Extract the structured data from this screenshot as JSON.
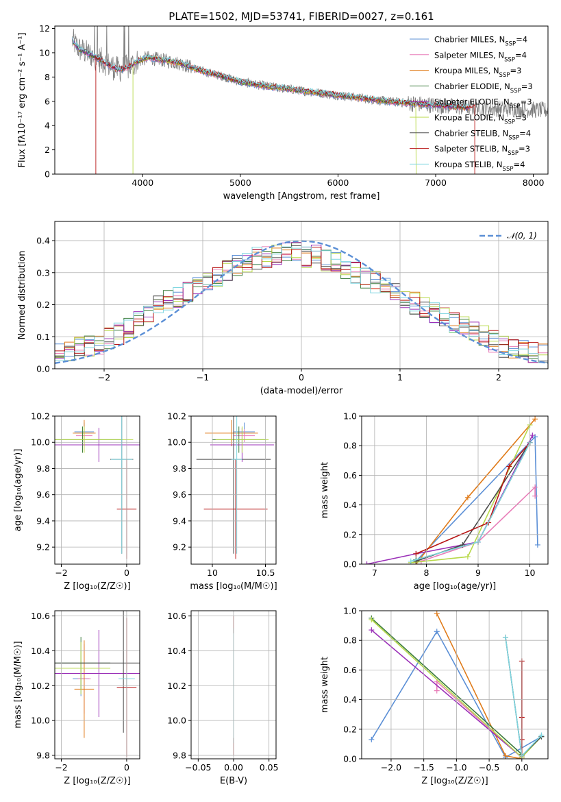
{
  "figure": {
    "title": "PLATE=1502, MJD=53741, FIBERID=0027, z=0.161"
  },
  "models": [
    {
      "name": "Chabrier MILES",
      "nssp": "4",
      "color": "#5b8fd6"
    },
    {
      "name": "Salpeter MILES",
      "nssp": "4",
      "color": "#e87db8"
    },
    {
      "name": "Kroupa MILES",
      "nssp": "3",
      "color": "#e07b1a"
    },
    {
      "name": "Chabrier ELODIE",
      "nssp": "3",
      "color": "#3d7d3d"
    },
    {
      "name": "Salpeter ELODIE",
      "nssp": "3",
      "color": "#9b30b8"
    },
    {
      "name": "Kroupa ELODIE",
      "nssp": "3",
      "color": "#b8d94a"
    },
    {
      "name": "Chabrier STELIB",
      "nssp": "4",
      "color": "#4a4a4a"
    },
    {
      "name": "Salpeter STELIB",
      "nssp": "3",
      "color": "#b81414"
    },
    {
      "name": "Kroupa STELIB",
      "nssp": "4",
      "color": "#7fd6e0"
    }
  ],
  "chart_data": [
    {
      "id": "spectrum",
      "type": "line",
      "xlabel": "wavelength [Angstrom, rest frame]",
      "ylabel": "Flux [fλ10⁻¹⁷ erg cm⁻² s⁻¹ A⁻¹]",
      "xlim": [
        3100,
        8150
      ],
      "ylim": [
        0,
        12.2
      ],
      "xticks": [
        4000,
        5000,
        6000,
        7000,
        8000
      ],
      "yticks": [
        0,
        2,
        4,
        6,
        8,
        10,
        12
      ],
      "continuum": {
        "x": [
          3280,
          3350,
          3450,
          3550,
          3650,
          3750,
          3850,
          3950,
          4050,
          4200,
          4400,
          4600,
          4800,
          5000,
          5300,
          5600,
          5900,
          6200,
          6500,
          6800,
          7100,
          7300
        ],
        "y": [
          11.0,
          10.3,
          9.9,
          9.5,
          9.0,
          8.6,
          8.8,
          9.3,
          9.6,
          9.4,
          9.1,
          8.5,
          8.1,
          7.6,
          7.2,
          6.9,
          6.6,
          6.3,
          6.0,
          5.8,
          5.6,
          5.5
        ]
      },
      "data_series": {
        "name": "data",
        "x_range": [
          3280,
          8150
        ],
        "color": "#808080"
      },
      "model_cutoffs": [
        {
          "model": "Salpeter STELIB",
          "x_start": 3520,
          "x_end": 7400
        },
        {
          "model": "Kroupa ELODIE",
          "x_start": 3900,
          "x_end": 6800
        }
      ]
    },
    {
      "id": "residuals",
      "type": "step",
      "xlabel": "(data-model)/error",
      "ylabel": "Normed distribution",
      "xlim": [
        -2.5,
        2.5
      ],
      "ylim": [
        0,
        0.46
      ],
      "xticks": [
        -2,
        -1,
        0,
        1,
        2
      ],
      "yticks": [
        0.0,
        0.1,
        0.2,
        0.3,
        0.4
      ],
      "legend": "𝒩(0, 1)",
      "legend_position": "top-right",
      "normal_curve": {
        "mean": 0,
        "sigma": 1,
        "color": "#5b8fd6"
      },
      "bin_edges_start": -2.5,
      "bin_width": 0.1,
      "envelope": [
        0.055,
        0.05,
        0.065,
        0.07,
        0.08,
        0.095,
        0.11,
        0.13,
        0.15,
        0.17,
        0.195,
        0.21,
        0.225,
        0.24,
        0.255,
        0.27,
        0.29,
        0.305,
        0.32,
        0.335,
        0.345,
        0.35,
        0.36,
        0.37,
        0.365,
        0.35,
        0.355,
        0.34,
        0.33,
        0.315,
        0.3,
        0.285,
        0.27,
        0.255,
        0.24,
        0.225,
        0.205,
        0.19,
        0.175,
        0.16,
        0.145,
        0.13,
        0.115,
        0.1,
        0.085,
        0.07,
        0.06,
        0.055,
        0.05,
        0.045
      ]
    },
    {
      "id": "age_vs_Z",
      "type": "errorbar",
      "xlabel": "Z [log₁₀(Z/Z☉)]",
      "ylabel": "age  [log₁₀(age/yr)]",
      "xlim": [
        -2.2,
        0.4
      ],
      "ylim": [
        9.07,
        10.2
      ],
      "xticks": [
        -2,
        0
      ],
      "yticks": [
        9.2,
        9.4,
        9.6,
        9.8,
        10.0,
        10.2
      ],
      "points": [
        {
          "model": "Chabrier MILES",
          "x": -1.3,
          "xerr": 0.3,
          "y": 10.08,
          "yerr": 0.07
        },
        {
          "model": "Salpeter MILES",
          "x": -1.3,
          "xerr": 0.25,
          "y": 10.05,
          "yerr": 0.05
        },
        {
          "model": "Kroupa MILES",
          "x": -1.3,
          "xerr": 0.35,
          "y": 10.07,
          "yerr": 0.1
        },
        {
          "model": "Chabrier ELODIE",
          "x": -1.35,
          "xerr": 1.2,
          "y": 10.02,
          "yerr": 0.1
        },
        {
          "model": "Salpeter ELODIE",
          "x": -0.85,
          "xerr": 2.0,
          "y": 9.98,
          "yerr": 0.13
        },
        {
          "model": "Kroupa ELODIE",
          "x": -1.3,
          "xerr": 1.5,
          "y": 10.02,
          "yerr": 0.1
        },
        {
          "model": "Chabrier STELIB",
          "x": -0.15,
          "xerr": 0.35,
          "y": 9.87,
          "yerr": 0.72
        },
        {
          "model": "Salpeter STELIB",
          "x": 0.0,
          "xerr": 0.3,
          "y": 9.49,
          "yerr": 0.38
        },
        {
          "model": "Kroupa STELIB",
          "x": -0.15,
          "xerr": 0.33,
          "y": 9.87,
          "yerr": 0.72
        }
      ]
    },
    {
      "id": "age_vs_mass",
      "type": "errorbar",
      "xlabel": "mass [log₁₀(M/M☉)]",
      "ylabel": "",
      "xlim": [
        9.8,
        10.6
      ],
      "ylim": [
        9.07,
        10.2
      ],
      "xticks": [
        10.0,
        10.5
      ],
      "yticks": [
        9.2,
        9.4,
        9.6,
        9.8,
        10.0,
        10.2
      ],
      "points": [
        {
          "model": "Chabrier MILES",
          "x": 10.3,
          "xerr": 0.1,
          "y": 10.08,
          "yerr": 0.07
        },
        {
          "model": "Salpeter MILES",
          "x": 10.3,
          "xerr": 0.1,
          "y": 10.05,
          "yerr": 0.05
        },
        {
          "model": "Kroupa MILES",
          "x": 10.18,
          "xerr": 0.25,
          "y": 10.07,
          "yerr": 0.1
        },
        {
          "model": "Chabrier ELODIE",
          "x": 10.25,
          "xerr": 0.25,
          "y": 10.02,
          "yerr": 0.1
        },
        {
          "model": "Salpeter ELODIE",
          "x": 10.28,
          "xerr": 0.3,
          "y": 9.98,
          "yerr": 0.13
        },
        {
          "model": "Kroupa ELODIE",
          "x": 10.28,
          "xerr": 0.25,
          "y": 10.02,
          "yerr": 0.1
        },
        {
          "model": "Chabrier STELIB",
          "x": 10.2,
          "xerr": 0.35,
          "y": 9.87,
          "yerr": 0.72
        },
        {
          "model": "Salpeter STELIB",
          "x": 10.22,
          "xerr": 0.3,
          "y": 9.49,
          "yerr": 0.38
        },
        {
          "model": "Kroupa STELIB",
          "x": 10.23,
          "xerr": 0.05,
          "y": 9.87,
          "yerr": 0.72
        }
      ]
    },
    {
      "id": "weight_vs_age",
      "type": "line",
      "xlabel": "age  [log₁₀(age/yr)]",
      "ylabel": "mass weight",
      "xlim": [
        6.75,
        10.35
      ],
      "ylim": [
        0,
        1.0
      ],
      "xticks": [
        7,
        8,
        9,
        10
      ],
      "yticks": [
        0.0,
        0.2,
        0.4,
        0.6,
        0.8,
        1.0
      ],
      "series": [
        {
          "model": "Chabrier MILES",
          "x": [
            7.8,
            10.1,
            10.15
          ],
          "y": [
            0.02,
            0.86,
            0.13
          ]
        },
        {
          "model": "Salpeter MILES",
          "x": [
            7.9,
            9.0,
            10.1,
            10.1
          ],
          "y": [
            0.02,
            0.15,
            0.52,
            0.46
          ]
        },
        {
          "model": "Kroupa MILES",
          "x": [
            7.8,
            8.8,
            10.1
          ],
          "y": [
            0.0,
            0.45,
            0.98
          ]
        },
        {
          "model": "Chabrier ELODIE",
          "x": [
            7.8,
            9.0,
            10.0
          ],
          "y": [
            0.03,
            0.15,
            0.82
          ]
        },
        {
          "model": "Salpeter ELODIE",
          "x": [
            6.85,
            7.8,
            9.0,
            10.05
          ],
          "y": [
            0.0,
            0.07,
            0.15,
            0.87
          ]
        },
        {
          "model": "Kroupa ELODIE",
          "x": [
            7.7,
            8.8,
            10.0
          ],
          "y": [
            0.01,
            0.05,
            0.94
          ]
        },
        {
          "model": "Chabrier STELIB",
          "x": [
            7.8,
            8.7,
            10.0
          ],
          "y": [
            0.02,
            0.13,
            0.82
          ]
        },
        {
          "model": "Salpeter STELIB",
          "x": [
            7.8,
            9.2,
            9.6,
            10.0
          ],
          "y": [
            0.07,
            0.28,
            0.66,
            0.82
          ]
        },
        {
          "model": "Kroupa STELIB",
          "x": [
            7.7,
            9.0,
            10.0
          ],
          "y": [
            0.02,
            0.15,
            0.82
          ]
        }
      ]
    },
    {
      "id": "mass_vs_Z",
      "type": "errorbar",
      "xlabel": "Z [log₁₀(Z/Z☉)]",
      "ylabel": "mass [log₁₀(M/M☉)]",
      "xlim": [
        -2.2,
        0.4
      ],
      "ylim": [
        9.78,
        10.63
      ],
      "xticks": [
        -2,
        0
      ],
      "yticks": [
        9.8,
        10.0,
        10.2,
        10.4,
        10.6
      ],
      "points": [
        {
          "model": "Chabrier MILES",
          "x": -1.4,
          "xerr": 0.25,
          "y": 10.24,
          "yerr": 0.1
        },
        {
          "model": "Salpeter MILES",
          "x": -1.3,
          "xerr": 0.2,
          "y": 10.24,
          "yerr": 0.2
        },
        {
          "model": "Kroupa MILES",
          "x": -1.3,
          "xerr": 0.3,
          "y": 10.18,
          "yerr": 0.28
        },
        {
          "model": "Chabrier ELODIE",
          "x": -1.4,
          "xerr": 0.9,
          "y": 10.33,
          "yerr": 0.15
        },
        {
          "model": "Salpeter ELODIE",
          "x": -0.85,
          "xerr": 2.0,
          "y": 10.27,
          "yerr": 0.25
        },
        {
          "model": "Kroupa ELODIE",
          "x": -1.4,
          "xerr": 0.9,
          "y": 10.3,
          "yerr": 0.15
        },
        {
          "model": "Chabrier STELIB",
          "x": -0.1,
          "xerr": 2.2,
          "y": 10.33,
          "yerr": 0.4
        },
        {
          "model": "Salpeter STELIB",
          "x": 0.0,
          "xerr": 0.3,
          "y": 10.19,
          "yerr": 0.4
        },
        {
          "model": "Kroupa STELIB",
          "x": 0.0,
          "xerr": 0.25,
          "y": 10.24,
          "yerr": 0.05
        }
      ]
    },
    {
      "id": "mass_vs_ebv",
      "type": "errorbar",
      "xlabel": "E(B-V)",
      "ylabel": "",
      "xlim": [
        -0.06,
        0.06
      ],
      "ylim": [
        9.78,
        10.63
      ],
      "xticks": [
        -0.05,
        0.0,
        0.05
      ],
      "xtick_labels": [
        "−0.05",
        "0.00",
        "0.05"
      ],
      "yticks": [
        9.8,
        10.0,
        10.2,
        10.4,
        10.6
      ],
      "points": [
        {
          "model": "Salpeter STELIB",
          "x": 0.0,
          "xerr": 0.0,
          "y": 10.2,
          "yerr": 0.4
        },
        {
          "model": "Chabrier STELIB",
          "x": 0.0,
          "xerr": 0.0,
          "y": 10.2,
          "yerr": 0.33
        },
        {
          "model": "Kroupa STELIB",
          "x": 0.0,
          "xerr": 0.0,
          "y": 10.2,
          "yerr": 0.3
        }
      ]
    },
    {
      "id": "weight_vs_Z",
      "type": "line",
      "xlabel": "Z [log₁₀(Z/Z☉)]",
      "ylabel": "mass weight",
      "xlim": [
        -2.45,
        0.4
      ],
      "ylim": [
        0,
        1.0
      ],
      "xticks": [
        -2.0,
        -1.5,
        -1.0,
        -0.5,
        0.0
      ],
      "xtick_labels": [
        "−2.0",
        "−1.5",
        "−1.0",
        "−0.5",
        "0.0"
      ],
      "yticks": [
        0.0,
        0.2,
        0.4,
        0.6,
        0.8,
        1.0
      ],
      "series": [
        {
          "model": "Chabrier MILES",
          "x": [
            -2.3,
            -1.3,
            -0.25,
            0.3
          ],
          "y": [
            0.13,
            0.86,
            0.01,
            0.15
          ]
        },
        {
          "model": "Salpeter MILES",
          "x": [
            -1.3,
            -1.3,
            0.0
          ],
          "y": [
            0.46,
            0.52,
            0.01
          ]
        },
        {
          "model": "Kroupa MILES",
          "x": [
            -1.3,
            -0.25,
            0.0
          ],
          "y": [
            0.98,
            0.02,
            0.0
          ]
        },
        {
          "model": "Chabrier ELODIE",
          "x": [
            -2.3,
            0.0
          ],
          "y": [
            0.95,
            0.03
          ]
        },
        {
          "model": "Salpeter ELODIE",
          "x": [
            -2.3,
            0.0
          ],
          "y": [
            0.87,
            0.01
          ]
        },
        {
          "model": "Kroupa ELODIE",
          "x": [
            -2.3,
            0.0,
            0.3
          ],
          "y": [
            0.94,
            0.01,
            0.15
          ]
        },
        {
          "model": "Chabrier STELIB",
          "x": [
            -0.25,
            0.0,
            0.3
          ],
          "y": [
            0.82,
            0.02,
            0.15
          ]
        },
        {
          "model": "Salpeter STELIB",
          "x": [
            0.0,
            0.0,
            0.0,
            0.0
          ],
          "y": [
            0.66,
            0.28,
            0.13,
            0.02
          ]
        },
        {
          "model": "Kroupa STELIB",
          "x": [
            -0.25,
            0.0,
            0.3
          ],
          "y": [
            0.82,
            0.02,
            0.16
          ]
        }
      ]
    }
  ]
}
